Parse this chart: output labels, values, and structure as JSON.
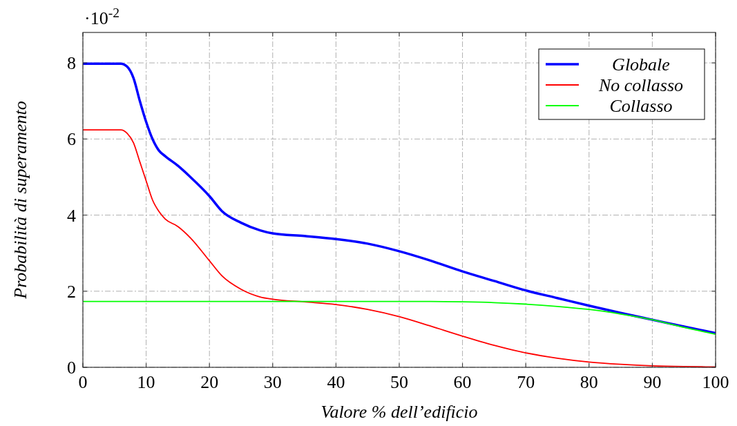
{
  "chart_data": {
    "type": "line",
    "xlabel": "Valore % dell’edificio",
    "ylabel": "Probabilità di superamento",
    "annotations": [
      "·10$^{-2}$"
    ],
    "x": [
      0,
      6,
      7,
      8,
      9,
      10,
      11,
      12,
      13,
      15,
      17,
      20,
      22,
      25,
      28,
      30,
      35,
      40,
      45,
      50,
      55,
      60,
      65,
      70,
      75,
      80,
      85,
      90,
      95,
      100
    ],
    "series": [
      {
        "name": "Globale",
        "color": "#0000ff",
        "values": [
          7.98,
          7.98,
          7.9,
          7.6,
          7.0,
          6.45,
          6.0,
          5.7,
          5.55,
          5.3,
          5.0,
          4.5,
          4.1,
          3.8,
          3.6,
          3.52,
          3.45,
          3.37,
          3.25,
          3.05,
          2.8,
          2.52,
          2.27,
          2.02,
          1.82,
          1.62,
          1.43,
          1.25,
          1.07,
          0.9
        ]
      },
      {
        "name": "No collasso",
        "color": "#ff0000",
        "values": [
          6.24,
          6.24,
          6.15,
          5.9,
          5.4,
          4.9,
          4.4,
          4.1,
          3.9,
          3.7,
          3.4,
          2.8,
          2.4,
          2.05,
          1.85,
          1.79,
          1.72,
          1.65,
          1.52,
          1.33,
          1.08,
          0.82,
          0.58,
          0.38,
          0.24,
          0.14,
          0.08,
          0.04,
          0.02,
          0.01
        ]
      },
      {
        "name": "Collasso",
        "color": "#00ff00",
        "values": [
          1.73,
          1.73,
          1.73,
          1.73,
          1.73,
          1.73,
          1.73,
          1.73,
          1.73,
          1.73,
          1.73,
          1.73,
          1.73,
          1.73,
          1.73,
          1.73,
          1.73,
          1.73,
          1.73,
          1.73,
          1.73,
          1.72,
          1.7,
          1.66,
          1.6,
          1.52,
          1.4,
          1.25,
          1.05,
          0.87
        ]
      }
    ],
    "xlim": [
      0,
      100
    ],
    "xticks": [
      0,
      10,
      20,
      30,
      40,
      50,
      60,
      70,
      80,
      90,
      100
    ],
    "ylim": [
      0,
      8.8
    ],
    "yticks": [
      0,
      2,
      4,
      6,
      8
    ],
    "grid": true,
    "legend": "top right",
    "marker": "none",
    "line_style": "solid"
  }
}
